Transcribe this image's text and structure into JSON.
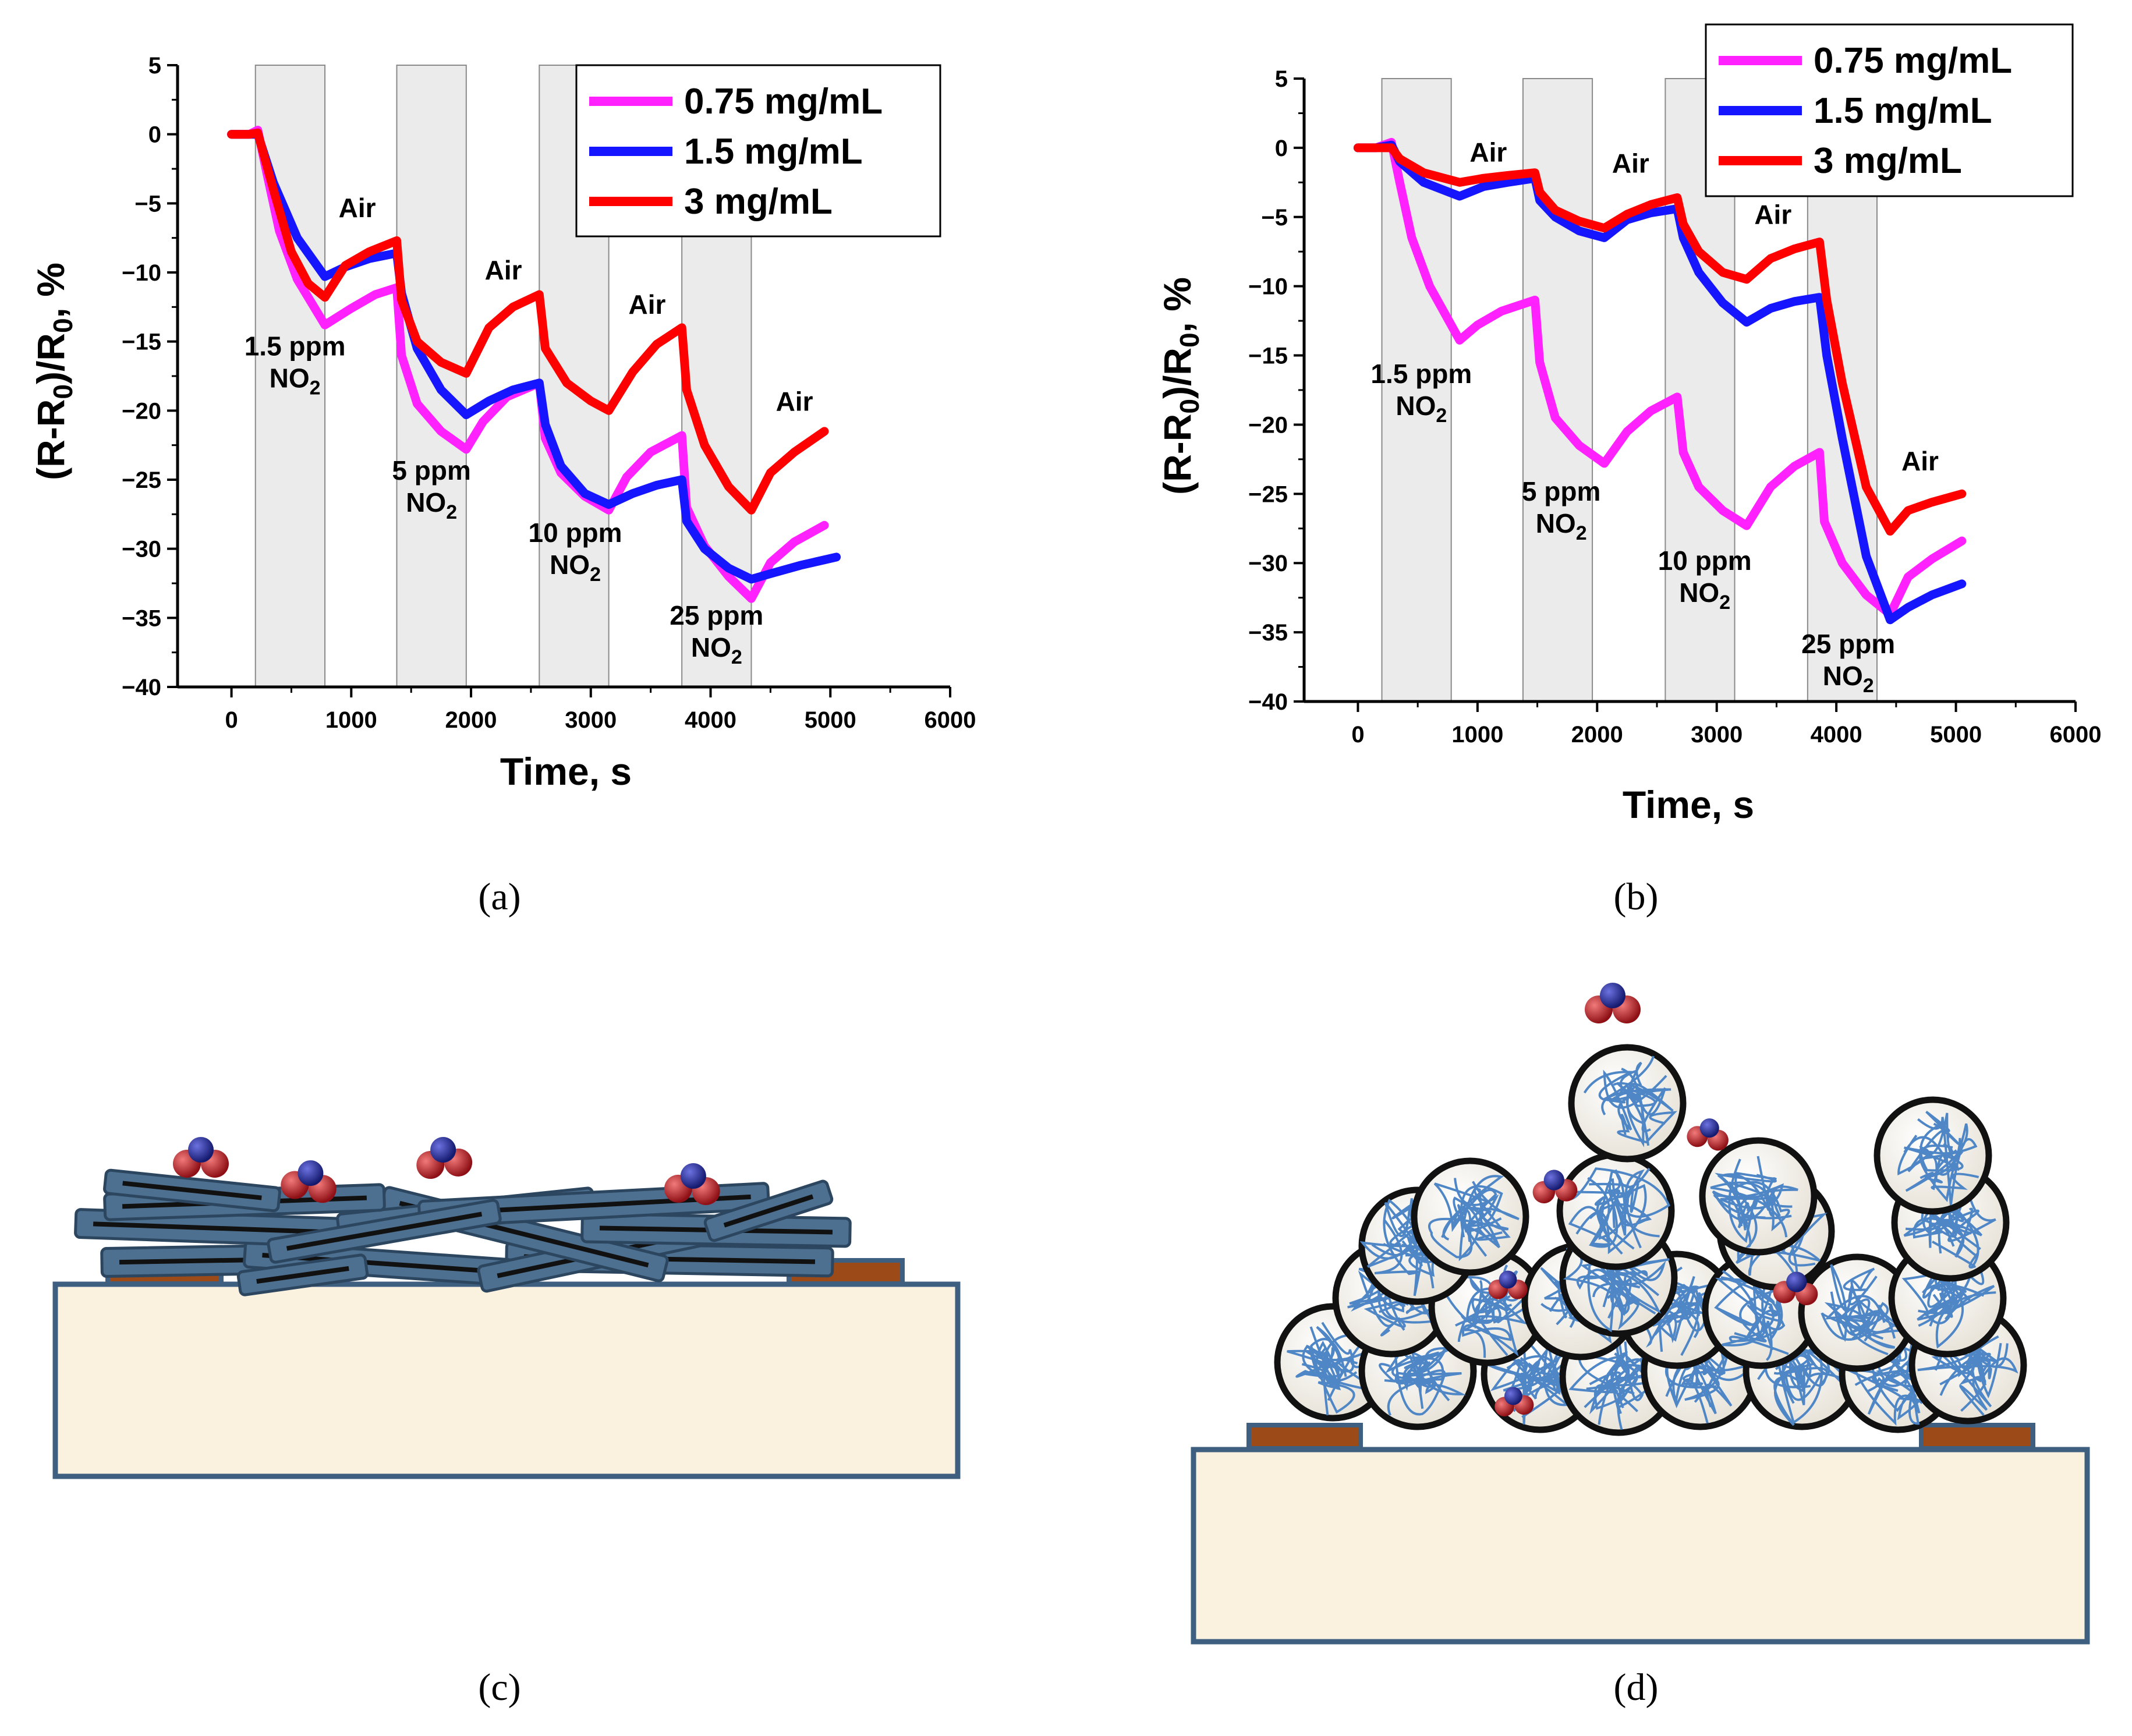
{
  "chart_data": [
    {
      "id": "a",
      "type": "line",
      "caption": "(a)",
      "xlabel": "Time, s",
      "ylabel": "(R-R0)/R0, %",
      "xlim": [
        -450,
        6000
      ],
      "ylim": [
        -40,
        5
      ],
      "xticks": [
        "0",
        "1000",
        "2000",
        "3000",
        "4000",
        "5000",
        "6000"
      ],
      "yticks": [
        "5",
        "0",
        "−5",
        "−10",
        "−15",
        "−20",
        "−25",
        "−30",
        "−35",
        "−40"
      ],
      "exposure_windows": [
        [
          200,
          780
        ],
        [
          1380,
          1960
        ],
        [
          2570,
          3150
        ],
        [
          3760,
          4340
        ]
      ],
      "annotations": [
        {
          "line1": "Air",
          "line2": "",
          "x": 1050,
          "y": -6
        },
        {
          "line1": "Air",
          "line2": "",
          "x": 2270,
          "y": -10.5
        },
        {
          "line1": "Air",
          "line2": "",
          "x": 3470,
          "y": -13
        },
        {
          "line1": "Air",
          "line2": "",
          "x": 4700,
          "y": -20
        },
        {
          "line1": "1.5 ppm",
          "line2": "NO2",
          "x": 530,
          "y": -16
        },
        {
          "line1": "5 ppm",
          "line2": "NO2",
          "x": 1670,
          "y": -25
        },
        {
          "line1": "10 ppm",
          "line2": "NO2",
          "x": 2870,
          "y": -29.5
        },
        {
          "line1": "25 ppm",
          "line2": "NO2",
          "x": 4050,
          "y": -35.5
        }
      ],
      "legend": {
        "position": "top-right"
      },
      "series": [
        {
          "name": "0.75 mg/mL",
          "color": "#ff22ff",
          "x": [
            0,
            150,
            220,
            300,
            400,
            550,
            780,
            1000,
            1200,
            1380,
            1420,
            1550,
            1750,
            1960,
            2100,
            2300,
            2570,
            2620,
            2750,
            2950,
            3150,
            3300,
            3500,
            3760,
            3800,
            3950,
            4150,
            4340,
            4500,
            4700,
            4950
          ],
          "y": [
            0,
            0,
            0.3,
            -3,
            -7,
            -10.5,
            -13.8,
            -12.6,
            -11.6,
            -11.1,
            -16,
            -19.5,
            -21.5,
            -22.8,
            -20.8,
            -19,
            -18,
            -22,
            -24.5,
            -26.2,
            -27.2,
            -24.8,
            -23,
            -21.8,
            -27,
            -29.8,
            -32,
            -33.6,
            -31,
            -29.5,
            -28.3
          ]
        },
        {
          "name": "1.5 mg/mL",
          "color": "#1515ff",
          "x": [
            0,
            150,
            220,
            350,
            550,
            780,
            950,
            1150,
            1380,
            1420,
            1550,
            1750,
            1960,
            2150,
            2350,
            2570,
            2620,
            2750,
            2950,
            3150,
            3350,
            3550,
            3760,
            3800,
            3950,
            4150,
            4340,
            4500,
            4750,
            5050
          ],
          "y": [
            0,
            0,
            0,
            -3.5,
            -7.5,
            -10.3,
            -9.6,
            -9,
            -8.6,
            -11.5,
            -15.5,
            -18.5,
            -20.3,
            -19.3,
            -18.5,
            -18,
            -21,
            -24,
            -26,
            -26.8,
            -26,
            -25.4,
            -25,
            -28,
            -30,
            -31.4,
            -32.2,
            -31.8,
            -31.2,
            -30.6
          ]
        },
        {
          "name": "3 mg/mL",
          "color": "#ff0000",
          "x": [
            0,
            150,
            220,
            350,
            500,
            640,
            780,
            950,
            1150,
            1380,
            1420,
            1550,
            1750,
            1960,
            2150,
            2350,
            2570,
            2620,
            2800,
            3000,
            3150,
            3350,
            3550,
            3760,
            3800,
            3950,
            4150,
            4340,
            4500,
            4700,
            4950
          ],
          "y": [
            0,
            0,
            0.1,
            -4,
            -8.5,
            -10.8,
            -11.8,
            -9.5,
            -8.5,
            -7.7,
            -12,
            -15,
            -16.5,
            -17.3,
            -14,
            -12.5,
            -11.6,
            -15.5,
            -18,
            -19.3,
            -20,
            -17.2,
            -15.2,
            -14,
            -18.5,
            -22.5,
            -25.5,
            -27.2,
            -24.5,
            -23,
            -21.5
          ]
        }
      ]
    },
    {
      "id": "b",
      "type": "line",
      "caption": "(b)",
      "xlabel": "Time, s",
      "ylabel": "(R-R0)/R0, %",
      "xlim": [
        -450,
        6000
      ],
      "ylim": [
        -40,
        5
      ],
      "xticks": [
        "0",
        "1000",
        "2000",
        "3000",
        "4000",
        "5000",
        "6000"
      ],
      "yticks": [
        "5",
        "0",
        "−5",
        "−10",
        "−15",
        "−20",
        "−25",
        "−30",
        "−35",
        "−40"
      ],
      "exposure_windows": [
        [
          200,
          780
        ],
        [
          1380,
          1960
        ],
        [
          2570,
          3150
        ],
        [
          3760,
          4340
        ]
      ],
      "annotations": [
        {
          "line1": "Air",
          "line2": "",
          "x": 1090,
          "y": -1
        },
        {
          "line1": "Air",
          "line2": "",
          "x": 2280,
          "y": -1.8
        },
        {
          "line1": "Air",
          "line2": "",
          "x": 3470,
          "y": -5.5
        },
        {
          "line1": "Air",
          "line2": "",
          "x": 4700,
          "y": -23.3
        },
        {
          "line1": "1.5 ppm",
          "line2": "NO2",
          "x": 530,
          "y": -17
        },
        {
          "line1": "5 ppm",
          "line2": "NO2",
          "x": 1700,
          "y": -25.5
        },
        {
          "line1": "10 ppm",
          "line2": "NO2",
          "x": 2900,
          "y": -30.5
        },
        {
          "line1": "25 ppm",
          "line2": "NO2",
          "x": 4100,
          "y": -36.5
        }
      ],
      "legend": {
        "position": "top-right"
      },
      "series": [
        {
          "name": "0.75 mg/mL",
          "color": "#ff22ff",
          "x": [
            0,
            150,
            280,
            350,
            450,
            600,
            850,
            1000,
            1200,
            1480,
            1520,
            1650,
            1850,
            2060,
            2250,
            2450,
            2670,
            2720,
            2850,
            3050,
            3250,
            3450,
            3650,
            3860,
            3900,
            4050,
            4250,
            4450,
            4600,
            4800,
            5050
          ],
          "y": [
            0,
            0,
            0.4,
            -2.5,
            -6.5,
            -10,
            -13.9,
            -12.8,
            -11.8,
            -11,
            -15.5,
            -19.5,
            -21.5,
            -22.8,
            -20.5,
            -19,
            -18,
            -22,
            -24.5,
            -26.2,
            -27.3,
            -24.5,
            -23,
            -22,
            -27,
            -30,
            -32.3,
            -33.7,
            -31,
            -29.7,
            -28.4
          ]
        },
        {
          "name": "1.5 mg/mL",
          "color": "#1515ff",
          "x": [
            0,
            150,
            280,
            350,
            550,
            850,
            1050,
            1250,
            1480,
            1520,
            1650,
            1850,
            2060,
            2250,
            2450,
            2670,
            2720,
            2850,
            3050,
            3250,
            3450,
            3650,
            3860,
            3920,
            4050,
            4250,
            4450,
            4600,
            4800,
            5050
          ],
          "y": [
            0,
            0,
            0.2,
            -1,
            -2.5,
            -3.5,
            -2.8,
            -2.5,
            -2.2,
            -3.8,
            -5,
            -6,
            -6.5,
            -5.2,
            -4.7,
            -4.4,
            -6.5,
            -9,
            -11.2,
            -12.6,
            -11.6,
            -11.1,
            -10.8,
            -15,
            -21,
            -29.5,
            -34.1,
            -33.2,
            -32.3,
            -31.5
          ]
        },
        {
          "name": "3 mg/mL",
          "color": "#ff0000",
          "x": [
            0,
            150,
            280,
            350,
            550,
            850,
            1050,
            1250,
            1480,
            1520,
            1650,
            1850,
            2060,
            2250,
            2450,
            2670,
            2720,
            2850,
            3050,
            3250,
            3450,
            3650,
            3860,
            3920,
            4050,
            4250,
            4450,
            4600,
            4800,
            5050
          ],
          "y": [
            0,
            0,
            0,
            -0.8,
            -1.8,
            -2.5,
            -2.2,
            -2,
            -1.8,
            -3.2,
            -4.5,
            -5.3,
            -5.8,
            -4.8,
            -4.1,
            -3.6,
            -5.5,
            -7.5,
            -9,
            -9.5,
            -8,
            -7.3,
            -6.8,
            -11,
            -17,
            -24.5,
            -27.7,
            -26.2,
            -25.6,
            -25
          ]
        }
      ]
    }
  ],
  "figure": {
    "captions": {
      "c": "(c)",
      "d": "(d)"
    },
    "colors": {
      "substrate_fill": "#fbf1df",
      "substrate_border": "#3f5f80",
      "electrode": "#9c4a17",
      "fiber": "#4d7091",
      "fiber_core": "#111111",
      "nitrogen": "#2a2f9c",
      "oxygen": "#c0232b",
      "tangle": "#4f86c6",
      "exposure_band": "#ebebeb"
    }
  }
}
